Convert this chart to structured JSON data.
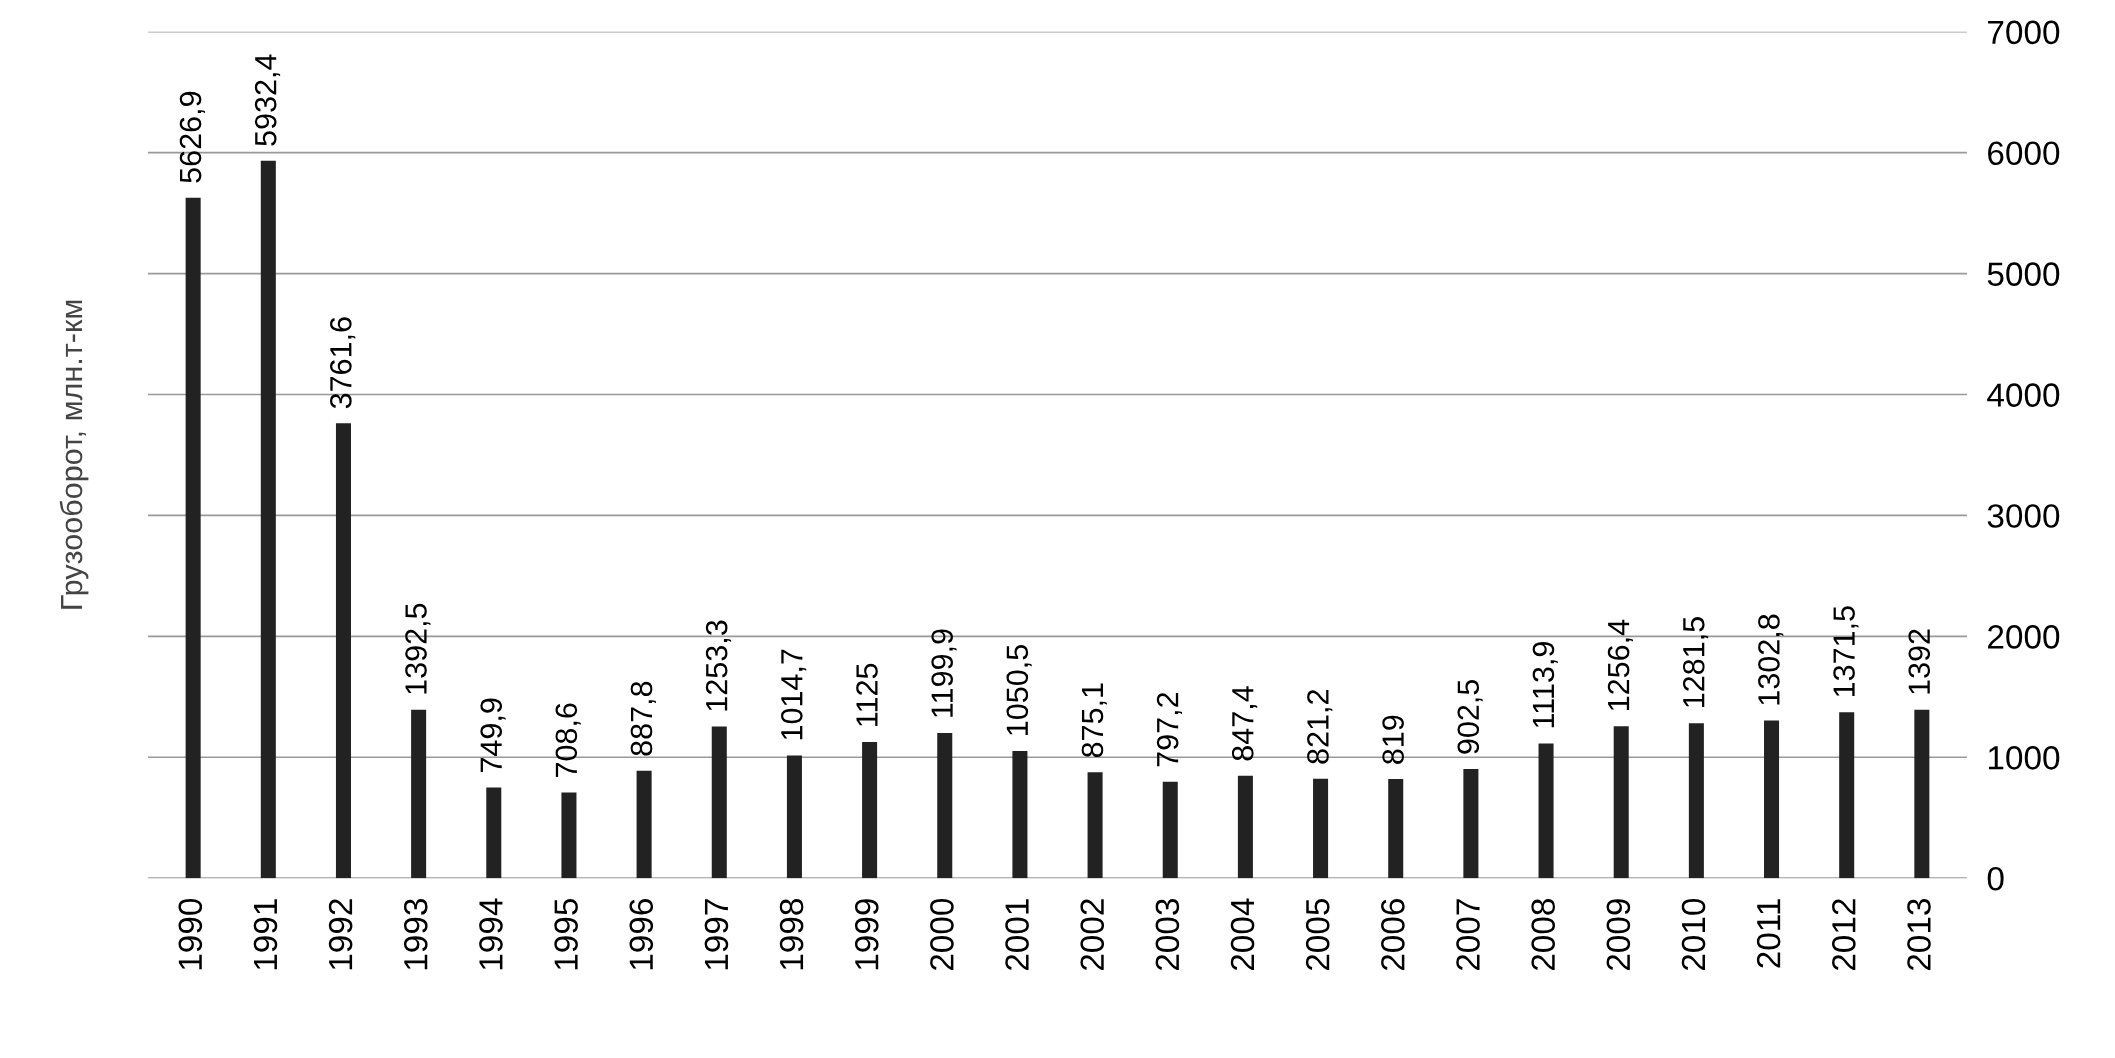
{
  "chart_data": {
    "type": "bar",
    "ylabel": "Грузооборот, млн.т-км",
    "categories": [
      "1990",
      "1991",
      "1992",
      "1993",
      "1994",
      "1995",
      "1996",
      "1997",
      "1998",
      "1999",
      "2000",
      "2001",
      "2002",
      "2003",
      "2004",
      "2005",
      "2006",
      "2007",
      "2008",
      "2009",
      "2010",
      "2011",
      "2012",
      "2013"
    ],
    "values": [
      5626.9,
      5932.4,
      3761.6,
      1392.5,
      749.9,
      708.6,
      887.8,
      1253.3,
      1014.7,
      1125,
      1199.9,
      1050.5,
      875.1,
      797.2,
      847.4,
      821.2,
      819,
      902.5,
      1113.9,
      1256.4,
      1281.5,
      1302.8,
      1371.5,
      1392
    ],
    "value_labels": [
      "5626,9",
      "5932,4",
      "3761,6",
      "1392,5",
      "749,9",
      "708,6",
      "887,8",
      "1253,3",
      "1014,7",
      "1125",
      "1199,9",
      "1050,5",
      "875,1",
      "797,2",
      "847,4",
      "821,2",
      "819",
      "902,5",
      "1113,9",
      "1256,4",
      "1281,5",
      "1302,8",
      "1371,5",
      "1392"
    ],
    "color": "#222222",
    "ylim": [
      0,
      7000
    ],
    "yticks": [
      0,
      1000,
      2000,
      3000,
      4000,
      5000,
      6000,
      7000
    ],
    "grid": "y"
  }
}
